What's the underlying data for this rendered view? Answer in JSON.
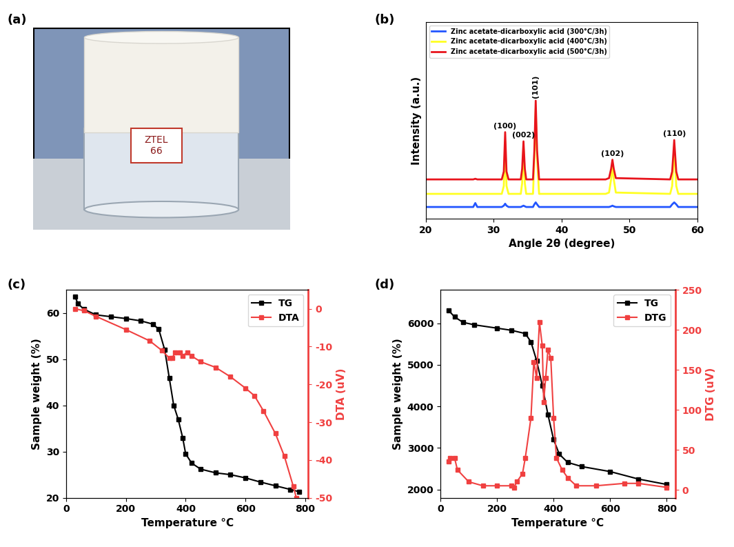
{
  "photo": {
    "panel_label": "(a)",
    "label": [
      "ZTEL",
      "66"
    ]
  },
  "chart_data": [
    {
      "type": "line",
      "panel_label": "(b)",
      "x_label": "Angle 2θ (degree)",
      "y_label": "Intensity (a.u.)",
      "x": [
        20,
        27.0,
        27.3,
        27.6,
        31.2,
        31.5,
        31.7,
        31.9,
        32.2,
        34.0,
        34.2,
        34.4,
        34.6,
        34.8,
        35.8,
        36.0,
        36.2,
        36.4,
        36.7,
        46.5,
        47.0,
        47.3,
        47.5,
        47.7,
        48.0,
        56.0,
        56.3,
        56.6,
        56.9,
        57.2,
        60
      ],
      "series": [
        {
          "name": "Zinc acetate-dicarboxylic acid (300°C/3h)",
          "color": "#2255ff",
          "values": [
            9,
            9,
            12,
            9,
            9,
            10,
            11.5,
            10,
            9,
            9,
            9.5,
            10,
            9.5,
            9,
            9,
            11,
            12.5,
            11,
            9,
            9,
            9,
            9.5,
            10,
            9.5,
            9,
            9,
            11,
            12.5,
            11,
            9,
            9
          ]
        },
        {
          "name": "Zinc acetate-dicarboxylic acid (400°C/3h)",
          "color": "#ffff22",
          "values": [
            19,
            19,
            19,
            19,
            19,
            25,
            59,
            25,
            19,
            19,
            27,
            55,
            27,
            19,
            19,
            46,
            84,
            46,
            19,
            19,
            20,
            30,
            40,
            30,
            20,
            19,
            25,
            55,
            25,
            19,
            19
          ]
        },
        {
          "name": "Zinc acetate-dicarboxylic acid (500°C/3h)",
          "color": "#e8141c",
          "values": [
            30,
            30,
            30.5,
            30,
            30,
            36,
            66,
            36,
            30,
            30,
            38,
            59,
            38,
            30,
            30,
            52,
            90,
            52,
            30,
            30,
            31,
            38,
            45,
            38,
            31,
            30,
            36,
            60,
            36,
            30,
            30
          ]
        }
      ],
      "xlim": [
        20,
        60
      ],
      "xticks": [
        20,
        30,
        40,
        50,
        60
      ],
      "ylim": [
        0,
        150
      ],
      "tick_labels": "x",
      "legend": "upper left",
      "annotations": [
        {
          "text": "(100)",
          "x": 31.7,
          "y": 68
        },
        {
          "text": "(002)",
          "x": 34.4,
          "y": 61
        },
        {
          "text": "(101)",
          "x": 36.2,
          "y": 92
        },
        {
          "text": "(102)",
          "x": 47.5,
          "y": 47
        },
        {
          "text": "(110)",
          "x": 56.6,
          "y": 62
        }
      ]
    },
    {
      "type": "line",
      "panel_label": "(c)",
      "x_label": "Temperature °C",
      "y_label": "Sample weight (%)",
      "y2_label": "DTA (uV)",
      "series": [
        {
          "name": "TG",
          "color": "#000000",
          "marker": "square",
          "line_style": "solid",
          "x": [
            30,
            40,
            60,
            100,
            150,
            200,
            250,
            290,
            310,
            330,
            345,
            360,
            375,
            390,
            400,
            420,
            450,
            500,
            550,
            600,
            650,
            700,
            750,
            780
          ],
          "values": [
            63.5,
            62,
            60.8,
            59.6,
            59.2,
            58.8,
            58.3,
            57.6,
            56.5,
            52,
            46,
            40,
            37,
            33,
            29.5,
            27.5,
            26.2,
            25.4,
            25,
            24.3,
            23.4,
            22.6,
            21.8,
            21.3
          ]
        },
        {
          "name": "DTA",
          "color": "#f04040",
          "marker": "square",
          "line_style": "solid",
          "axis": "y2",
          "x": [
            30,
            60,
            100,
            200,
            280,
            320,
            345,
            355,
            365,
            380,
            390,
            405,
            420,
            450,
            500,
            550,
            600,
            630,
            660,
            700,
            730,
            760,
            770
          ],
          "values": [
            0,
            -0.5,
            -2,
            -5.5,
            -8.5,
            -11,
            -13,
            -13,
            -11.5,
            -11.5,
            -12.5,
            -11.5,
            -12.5,
            -14,
            -15.5,
            -18,
            -21,
            -23,
            -27,
            -33,
            -39,
            -47,
            -50
          ]
        }
      ],
      "xlim": [
        0,
        810
      ],
      "xticks": [
        0,
        200,
        400,
        600,
        800
      ],
      "ylim": [
        20,
        65
      ],
      "yticks": [
        20,
        30,
        40,
        50,
        60
      ],
      "y2lim": [
        -50,
        5
      ],
      "y2ticks": [
        -50,
        -40,
        -30,
        -20,
        -10,
        0
      ],
      "legend": "upper right"
    },
    {
      "type": "line",
      "panel_label": "(d)",
      "x_label": "Temperature °C",
      "y_label": "Sample weight (%)",
      "y2_label": "DTG (uV)",
      "series": [
        {
          "name": "TG",
          "color": "#000000",
          "marker": "square",
          "line_style": "solid",
          "x": [
            30,
            50,
            80,
            120,
            200,
            250,
            300,
            320,
            340,
            360,
            380,
            400,
            420,
            450,
            500,
            600,
            700,
            800
          ],
          "values": [
            6300,
            6150,
            6020,
            5960,
            5880,
            5830,
            5750,
            5550,
            5100,
            4500,
            3800,
            3200,
            2850,
            2650,
            2550,
            2430,
            2250,
            2120
          ]
        },
        {
          "name": "DTG",
          "color": "#f04040",
          "marker": "square",
          "line_style": "solid",
          "axis": "y2",
          "x": [
            30,
            35,
            50,
            60,
            100,
            150,
            200,
            250,
            260,
            270,
            290,
            300,
            320,
            330,
            340,
            350,
            360,
            365,
            372,
            380,
            390,
            400,
            410,
            430,
            450,
            480,
            550,
            650,
            700,
            800
          ],
          "values": [
            35,
            40,
            40,
            25,
            10,
            5,
            5,
            5,
            3,
            10,
            20,
            40,
            90,
            160,
            140,
            210,
            180,
            110,
            140,
            175,
            165,
            90,
            40,
            25,
            15,
            5,
            5,
            8,
            8,
            3
          ]
        }
      ],
      "xlim": [
        0,
        830
      ],
      "xticks": [
        0,
        200,
        400,
        600,
        800
      ],
      "ylim": [
        1800,
        6800
      ],
      "yticks": [
        2000,
        3000,
        4000,
        5000,
        6000
      ],
      "y2lim": [
        -10,
        250
      ],
      "y2ticks": [
        0,
        50,
        100,
        150,
        200,
        250
      ],
      "legend": "upper right"
    }
  ]
}
